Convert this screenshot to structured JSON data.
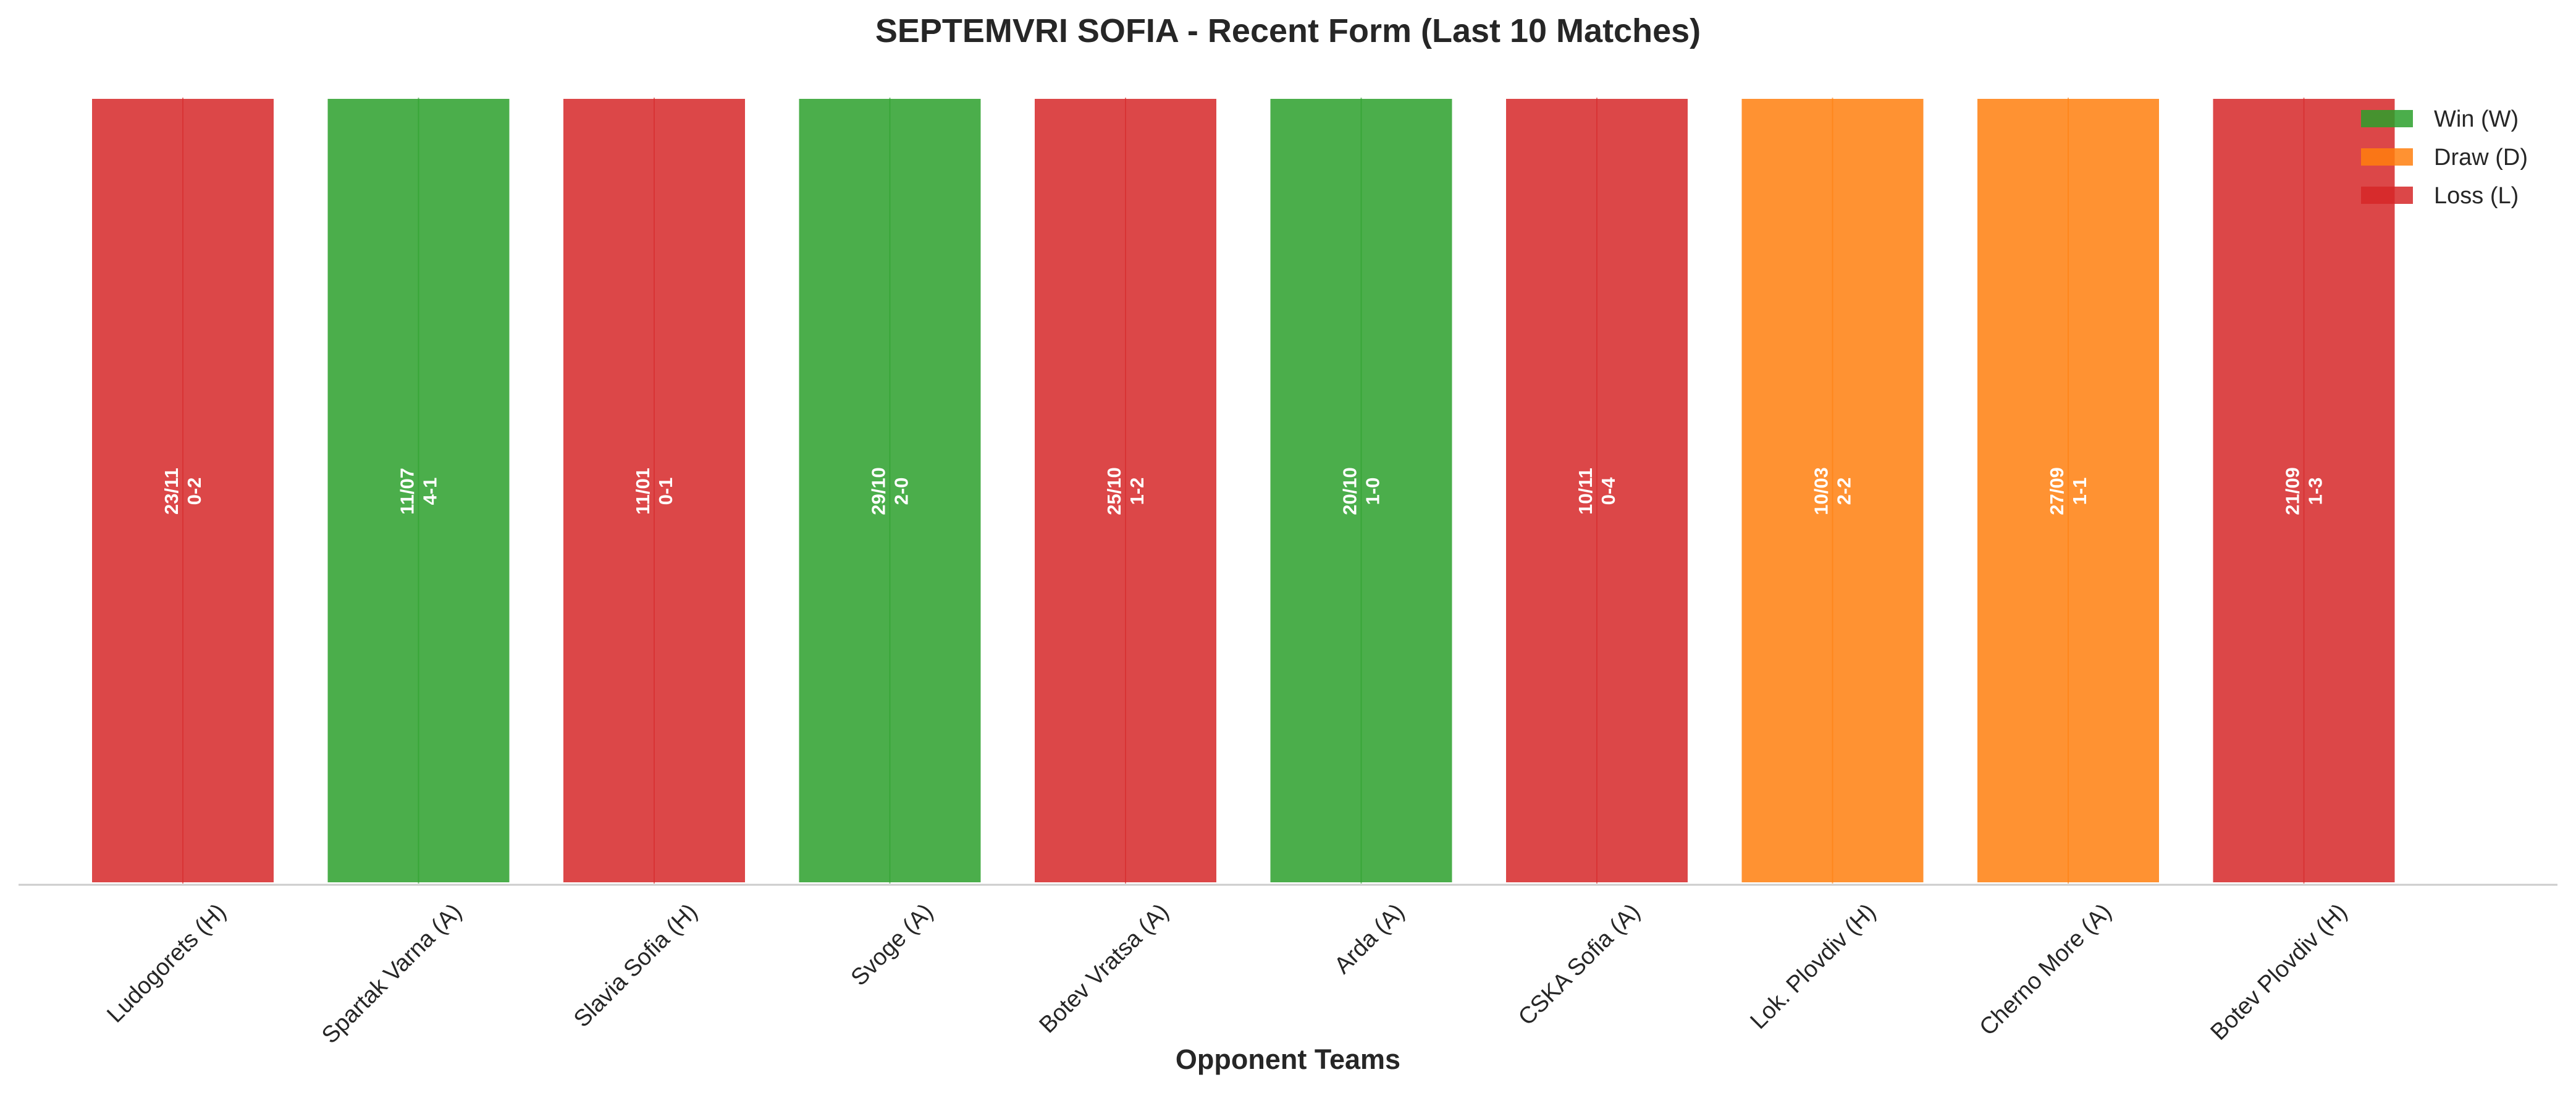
{
  "chart_data": {
    "type": "bar",
    "title": "SEPTEMVRI SOFIA - Recent Form (Last 10 Matches)",
    "xlabel": "Opponent Teams",
    "ylabel": "",
    "grid": false,
    "legend_placement": "top-right",
    "categories": [
      "Ludogorets (H)",
      "Spartak Varna (A)",
      "Slavia Sofia (H)",
      "Svoge (A)",
      "Botev Vratsa (A)",
      "Arda (A)",
      "CSKA Sofia (A)",
      "Lok. Plovdiv (H)",
      "Cherno More (A)",
      "Botev Plovdiv (H)"
    ],
    "values": [
      1,
      1,
      1,
      1,
      1,
      1,
      1,
      1,
      1,
      1
    ],
    "results": [
      "L",
      "W",
      "L",
      "W",
      "L",
      "W",
      "L",
      "D",
      "D",
      "L"
    ],
    "dates": [
      "23/11",
      "11/07",
      "11/01",
      "29/10",
      "25/10",
      "20/10",
      "10/11",
      "10/03",
      "27/09",
      "21/09"
    ],
    "scores": [
      "0-2",
      "4-1",
      "0-1",
      "2-0",
      "1-2",
      "1-0",
      "0-4",
      "2-2",
      "1-1",
      "1-3"
    ],
    "legend": [
      {
        "key": "W",
        "label": "Win (W)",
        "color": "#2ca02c"
      },
      {
        "key": "D",
        "label": "Draw (D)",
        "color": "#ff7f0e"
      },
      {
        "key": "L",
        "label": "Loss (L)",
        "color": "#d62728"
      }
    ]
  }
}
